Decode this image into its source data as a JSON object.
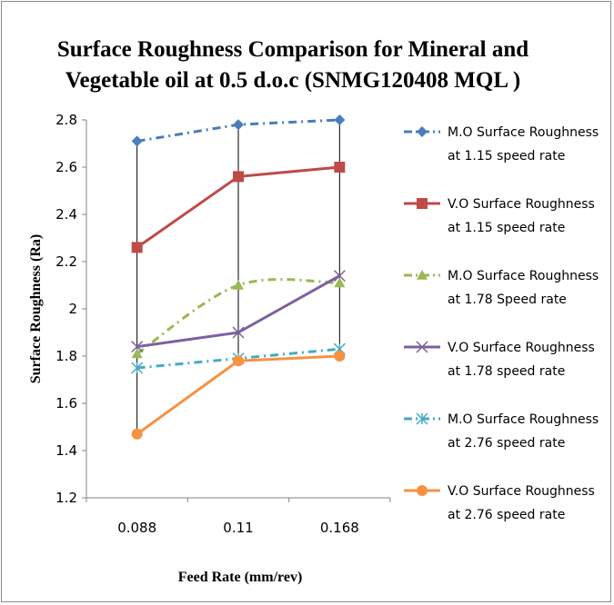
{
  "chart_data": {
    "type": "line",
    "title_lines": [
      "Surface Roughness Comparison for Mineral and",
      "Vegetable oil at 0.5 d.o.c (SNMG120408 MQL )"
    ],
    "xlabel": "Feed Rate (mm/rev)",
    "ylabel": "Surface Roughness (Ra)",
    "categories": [
      "0.088",
      "0.11",
      "0.168"
    ],
    "ylim": [
      1.2,
      2.8
    ],
    "yticks": [
      "1.2",
      "1.4",
      "1.6",
      "1.8",
      "2",
      "2.2",
      "2.4",
      "2.6",
      "2.8"
    ],
    "ytick_values": [
      1.2,
      1.4,
      1.6,
      1.8,
      2.0,
      2.2,
      2.4,
      2.6,
      2.8
    ],
    "grid": false,
    "drop_lines": true,
    "legend_position": "right",
    "series": [
      {
        "legend_lines": [
          "M.O Surface Roughness",
          "at 1.15 speed rate"
        ],
        "values": [
          2.71,
          2.78,
          2.8
        ],
        "color": "#4a7ebb",
        "marker": "diamond",
        "dash": "dashdot",
        "smooth": false
      },
      {
        "legend_lines": [
          "V.O Surface Roughness",
          "at 1.15 speed rate"
        ],
        "values": [
          2.26,
          2.56,
          2.6
        ],
        "color": "#be4b48",
        "marker": "square",
        "dash": "solid",
        "smooth": false
      },
      {
        "legend_lines": [
          "M.O Surface Roughness",
          "at 1.78 Speed rate"
        ],
        "values": [
          1.81,
          2.1,
          2.11
        ],
        "color": "#98b954",
        "marker": "triangle",
        "dash": "dashdot",
        "smooth": true
      },
      {
        "legend_lines": [
          "V.O Surface Roughness",
          "at 1.78 speed rate"
        ],
        "values": [
          1.84,
          1.9,
          2.14
        ],
        "color": "#7d60a0",
        "marker": "x",
        "dash": "solid",
        "smooth": false
      },
      {
        "legend_lines": [
          "M.O Surface Roughness",
          "at 2.76 speed rate"
        ],
        "values": [
          1.75,
          1.79,
          1.83
        ],
        "color": "#46aac5",
        "marker": "star",
        "dash": "dashdot",
        "smooth": false
      },
      {
        "legend_lines": [
          "V.O Surface Roughness",
          "at 2.76 speed rate"
        ],
        "values": [
          1.47,
          1.78,
          1.8
        ],
        "color": "#f69240",
        "marker": "circle",
        "dash": "solid",
        "smooth": false
      }
    ]
  }
}
